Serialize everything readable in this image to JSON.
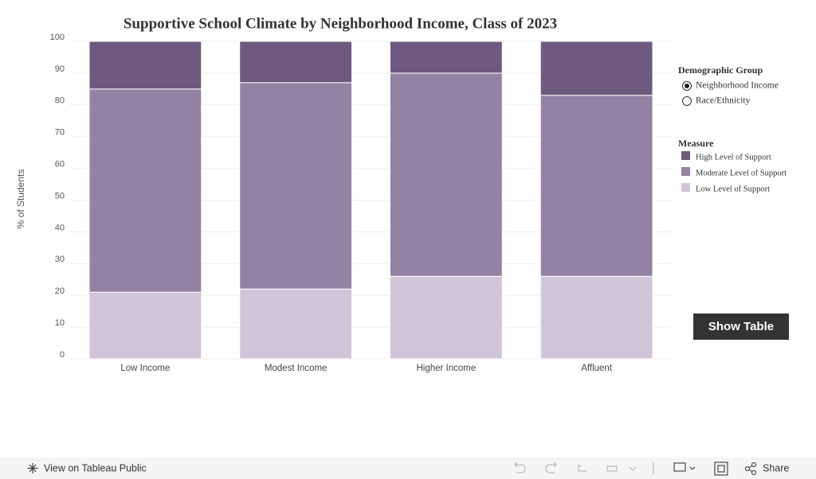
{
  "chart_data": {
    "type": "stacked_bar",
    "title": "Supportive School Climate by Neighborhood Income, Class of 2023",
    "y_label": "% of Students",
    "categories": [
      "Low Income",
      "Modest Income",
      "Higher Income",
      "Affluent"
    ],
    "series": [
      {
        "name": "High Level of Support",
        "color": "#6e5a7e",
        "values": [
          15,
          13,
          10,
          17
        ]
      },
      {
        "name": "Moderate Level of Support",
        "color": "#9382a3",
        "values": [
          64,
          65,
          64,
          57
        ]
      },
      {
        "name": "Low Level of Support",
        "color": "#cfc5d8",
        "values": [
          21,
          22,
          26,
          26
        ]
      }
    ],
    "legend_title": "Measure",
    "ylim": [
      0,
      100
    ],
    "yticks": [
      0,
      10,
      20,
      30,
      40,
      50,
      60,
      70,
      80,
      90,
      100
    ],
    "grid": true
  },
  "filter": {
    "title": "Demographic Group",
    "options": [
      {
        "label": "Neighborhood Income",
        "selected": true
      },
      {
        "label": "Race/Ethnicity",
        "selected": false
      }
    ]
  },
  "button": "Show Table",
  "footer": {
    "link": "View on Tableau Public",
    "share": "Share"
  }
}
